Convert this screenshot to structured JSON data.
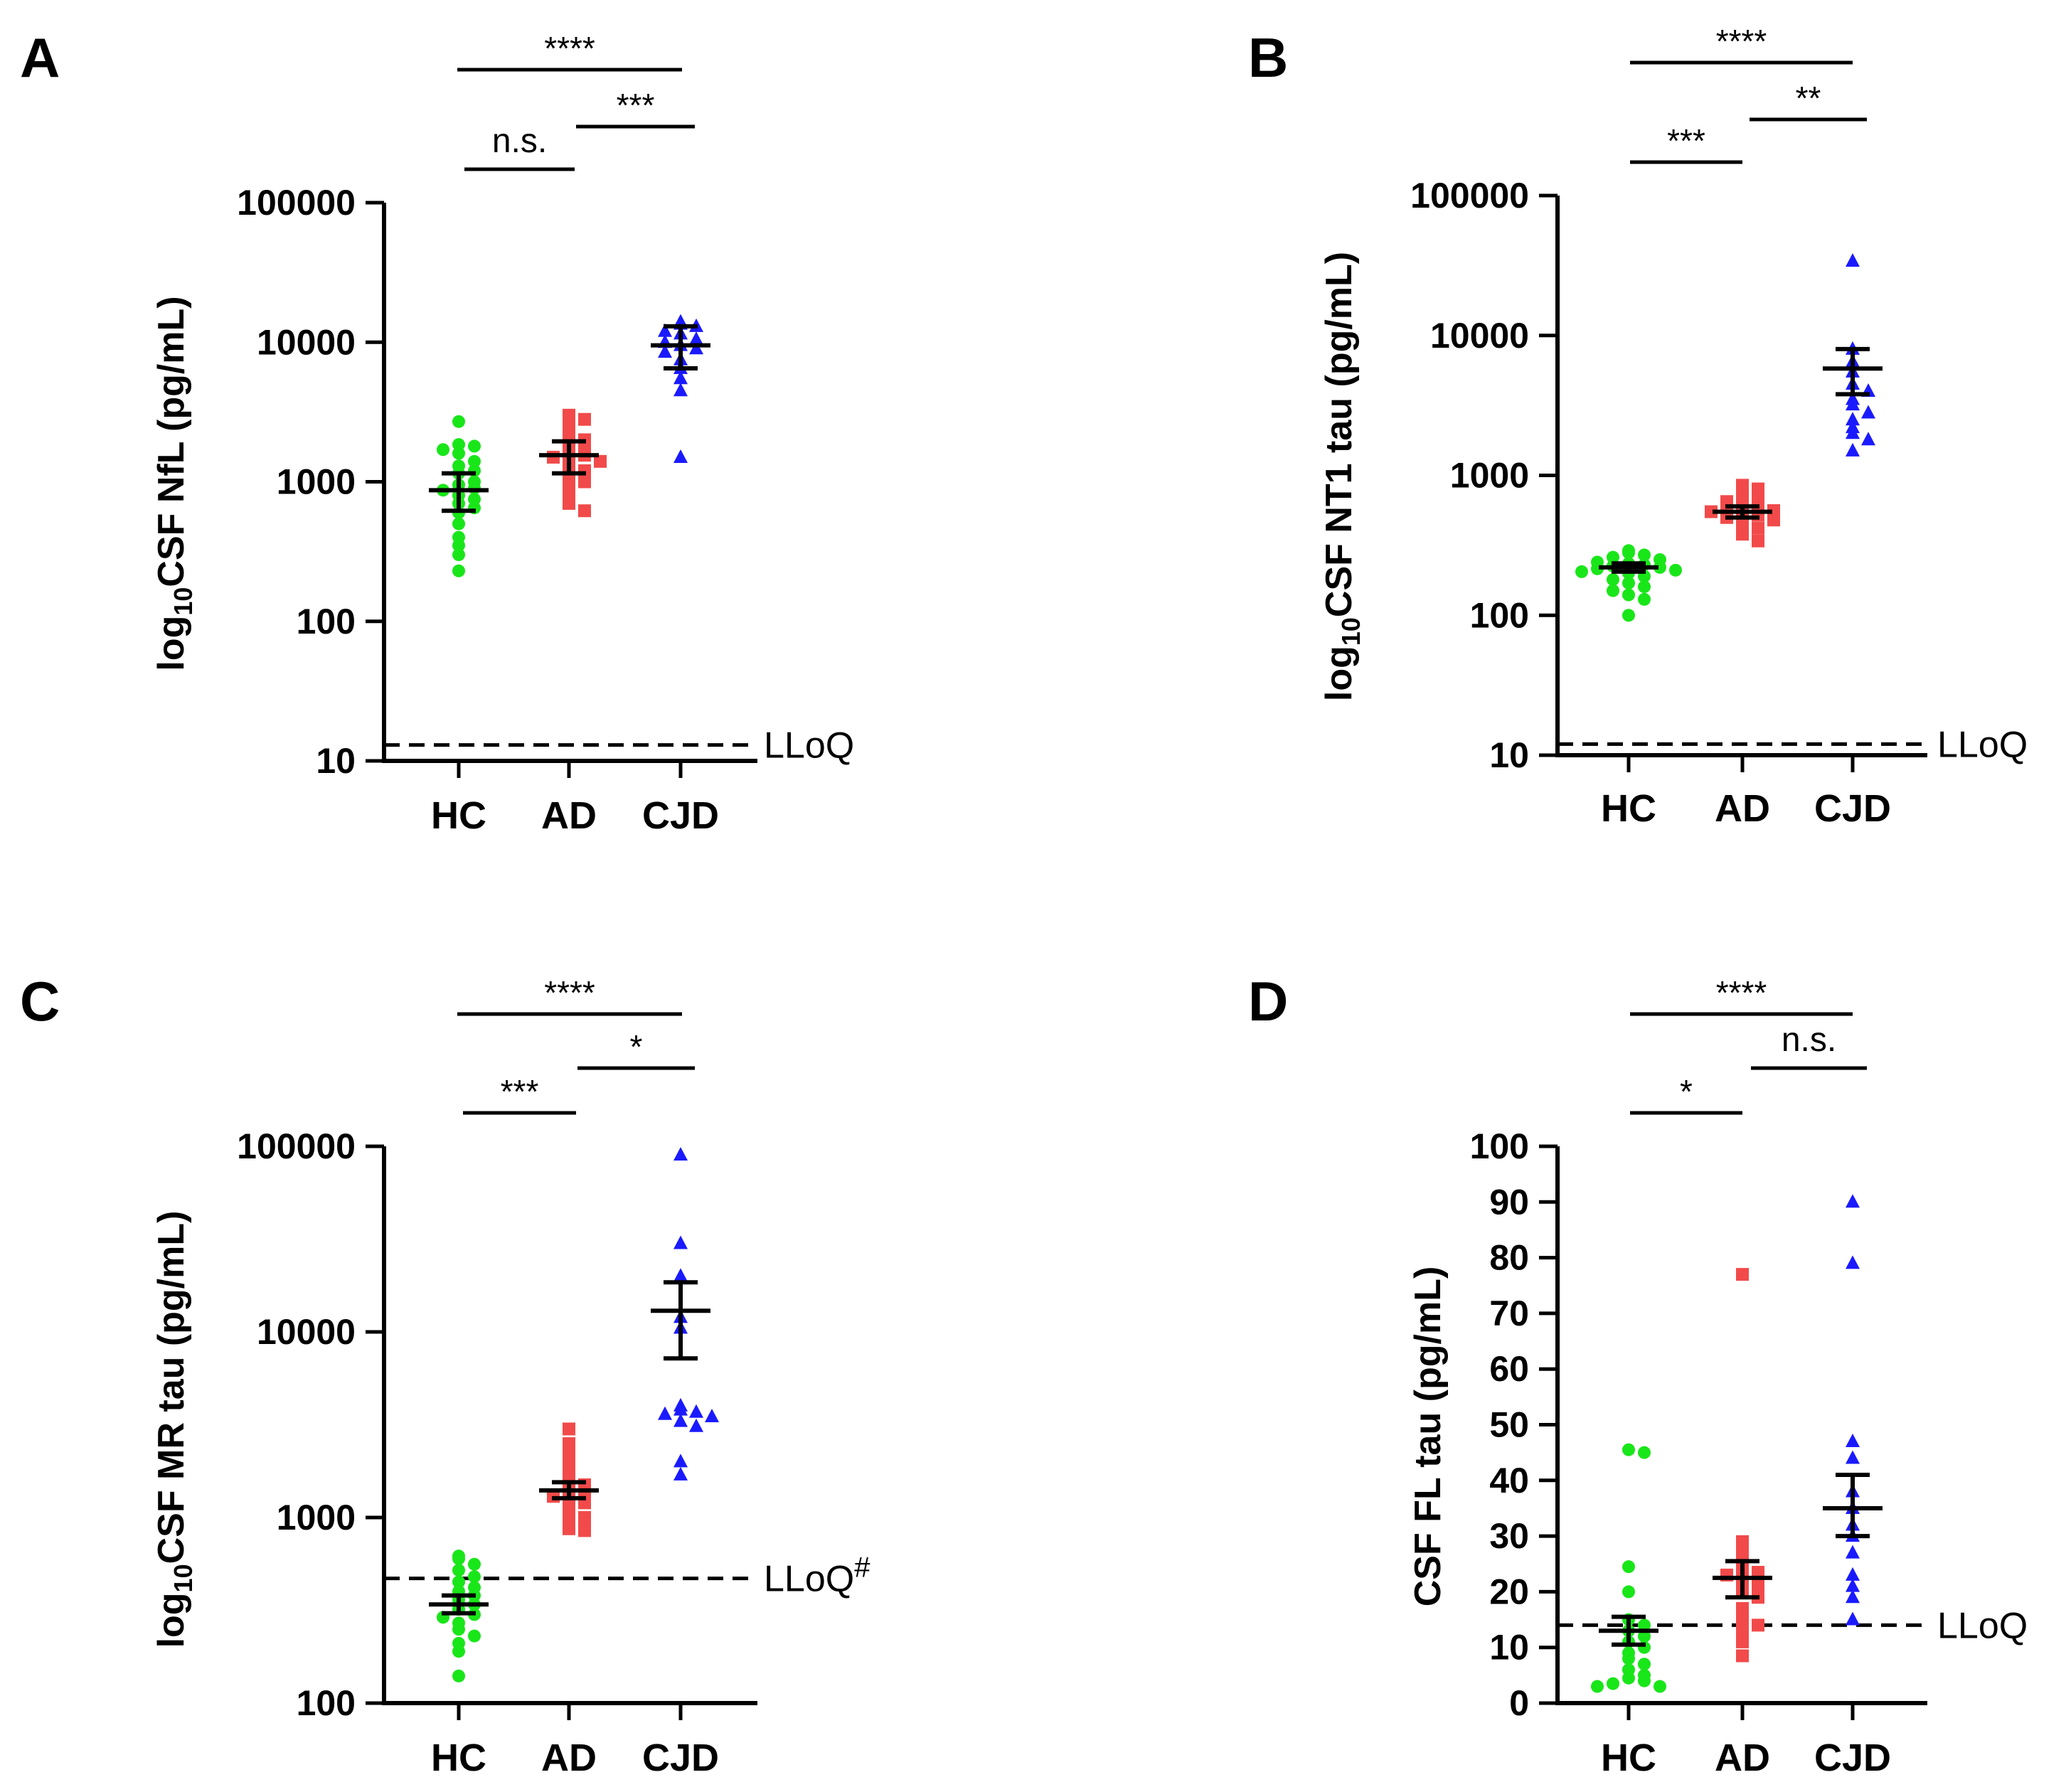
{
  "colors": {
    "HC": "#19e619",
    "AD": "#f24a4a",
    "CJD": "#1a1aff",
    "axis": "#000000"
  },
  "chart_data": [
    {
      "panel": "A",
      "type": "scatter",
      "scale": "log",
      "ylabel_pre": "log",
      "ylabel_sub": "10",
      "ylabel_post": "CSF NfL (pg/mL)",
      "ylim": [
        10,
        100000
      ],
      "yticks": [
        10,
        100,
        1000,
        10000,
        100000
      ],
      "ytick_labels": [
        "10",
        "100",
        "1000",
        "10000",
        "100000"
      ],
      "categories": [
        "HC",
        "AD",
        "CJD"
      ],
      "lloq": {
        "value": 13,
        "label": "LLoQ",
        "sup": ""
      },
      "significance": [
        {
          "from": 0,
          "to": 2,
          "label": "****",
          "level": 0
        },
        {
          "from": 0,
          "to": 1,
          "label": "n.s.",
          "level": 1
        },
        {
          "from": 1,
          "to": 2,
          "label": "***",
          "level": 2
        }
      ],
      "series": [
        {
          "name": "HC",
          "marker": "circle",
          "mean": 870,
          "sem_low": 620,
          "sem_high": 1150,
          "values": [
            2700,
            1850,
            1800,
            1700,
            1600,
            1400,
            1300,
            1200,
            1150,
            1000,
            950,
            900,
            870,
            800,
            750,
            700,
            650,
            600,
            500,
            400,
            350,
            300,
            230
          ]
        },
        {
          "name": "AD",
          "marker": "square",
          "mean": 1550,
          "sem_low": 1150,
          "sem_high": 1950,
          "values": [
            3000,
            2800,
            2500,
            2200,
            2000,
            1800,
            1700,
            1600,
            1550,
            1500,
            1400,
            1300,
            1200,
            1100,
            1000,
            900,
            800,
            700,
            620
          ]
        },
        {
          "name": "CJD",
          "marker": "triangle",
          "mean": 9500,
          "sem_low": 6500,
          "sem_high": 13000,
          "values": [
            14000,
            13500,
            13000,
            12000,
            11500,
            10500,
            10000,
            9500,
            9000,
            8500,
            7500,
            6500,
            5500,
            4500,
            1500
          ]
        }
      ]
    },
    {
      "panel": "B",
      "type": "scatter",
      "scale": "log",
      "ylabel_pre": "log",
      "ylabel_sub": "10",
      "ylabel_post": "CSF NT1 tau (pg/mL)",
      "ylim": [
        10,
        100000
      ],
      "yticks": [
        10,
        100,
        1000,
        10000,
        100000
      ],
      "ytick_labels": [
        "10",
        "100",
        "1000",
        "10000",
        "100000"
      ],
      "categories": [
        "HC",
        "AD",
        "CJD"
      ],
      "lloq": {
        "value": 12,
        "label": "LLoQ",
        "sup": ""
      },
      "significance": [
        {
          "from": 0,
          "to": 2,
          "label": "****",
          "level": 0
        },
        {
          "from": 1,
          "to": 2,
          "label": "**",
          "level": 1
        },
        {
          "from": 0,
          "to": 1,
          "label": "***",
          "level": 2
        }
      ],
      "series": [
        {
          "name": "HC",
          "marker": "circle",
          "mean": 220,
          "sem_low": 205,
          "sem_high": 235,
          "values": [
            290,
            280,
            270,
            260,
            250,
            240,
            235,
            230,
            225,
            220,
            215,
            210,
            205,
            200,
            190,
            180,
            170,
            160,
            150,
            140,
            130,
            100
          ]
        },
        {
          "name": "AD",
          "marker": "square",
          "mean": 550,
          "sem_low": 500,
          "sem_high": 600,
          "values": [
            850,
            800,
            750,
            700,
            650,
            620,
            600,
            580,
            560,
            550,
            540,
            520,
            500,
            480,
            450,
            420,
            380,
            340
          ]
        },
        {
          "name": "CJD",
          "marker": "triangle",
          "mean": 5800,
          "sem_low": 3800,
          "sem_high": 8000,
          "values": [
            34000,
            8000,
            6500,
            5500,
            4500,
            4000,
            3500,
            3200,
            2800,
            2500,
            2200,
            2000,
            1800,
            1500
          ]
        }
      ]
    },
    {
      "panel": "C",
      "type": "scatter",
      "scale": "log",
      "ylabel_pre": "log",
      "ylabel_sub": "10",
      "ylabel_post": "CSF MR tau (pg/mL)",
      "ylim": [
        100,
        100000
      ],
      "yticks": [
        100,
        1000,
        10000,
        100000
      ],
      "ytick_labels": [
        "100",
        "1000",
        "10000",
        "100000"
      ],
      "categories": [
        "HC",
        "AD",
        "CJD"
      ],
      "lloq": {
        "value": 470,
        "label": "LLoQ",
        "sup": "#"
      },
      "significance": [
        {
          "from": 0,
          "to": 2,
          "label": "****",
          "level": 0
        },
        {
          "from": 1,
          "to": 2,
          "label": "*",
          "level": 1
        },
        {
          "from": 0,
          "to": 1,
          "label": "***",
          "level": 2
        }
      ],
      "series": [
        {
          "name": "HC",
          "marker": "circle",
          "mean": 340,
          "sem_low": 305,
          "sem_high": 380,
          "values": [
            620,
            600,
            560,
            520,
            480,
            450,
            420,
            400,
            380,
            360,
            340,
            320,
            300,
            290,
            270,
            250,
            230,
            210,
            190,
            140
          ]
        },
        {
          "name": "AD",
          "marker": "square",
          "mean": 1400,
          "sem_low": 1270,
          "sem_high": 1550,
          "values": [
            3000,
            2500,
            2200,
            1900,
            1700,
            1600,
            1500,
            1400,
            1350,
            1300,
            1250,
            1200,
            1100,
            1000,
            950,
            900,
            870,
            850
          ]
        },
        {
          "name": "CJD",
          "marker": "triangle",
          "mean": 13000,
          "sem_low": 7200,
          "sem_high": 18500,
          "values": [
            90000,
            30000,
            20000,
            12000,
            10500,
            4000,
            3800,
            3700,
            3600,
            3500,
            3300,
            3100,
            2000,
            1700
          ]
        }
      ]
    },
    {
      "panel": "D",
      "type": "scatter",
      "scale": "linear",
      "ylabel_pre": "",
      "ylabel_sub": "",
      "ylabel_post": "CSF FL tau (pg/mL)",
      "ylim": [
        0,
        100
      ],
      "yticks": [
        0,
        10,
        20,
        30,
        40,
        50,
        60,
        70,
        80,
        90,
        100
      ],
      "ytick_labels": [
        "0",
        "10",
        "20",
        "30",
        "40",
        "50",
        "60",
        "70",
        "80",
        "90",
        "100"
      ],
      "categories": [
        "HC",
        "AD",
        "CJD"
      ],
      "lloq": {
        "value": 14,
        "label": "LLoQ",
        "sup": ""
      },
      "significance": [
        {
          "from": 0,
          "to": 2,
          "label": "****",
          "level": 0
        },
        {
          "from": 1,
          "to": 2,
          "label": "n.s.",
          "level": 1
        },
        {
          "from": 0,
          "to": 1,
          "label": "*",
          "level": 2
        }
      ],
      "series": [
        {
          "name": "HC",
          "marker": "circle",
          "mean": 13,
          "sem_low": 10.5,
          "sem_high": 15.5,
          "values": [
            45.5,
            45,
            24.5,
            20,
            15,
            14,
            13,
            12,
            11,
            10,
            9,
            8,
            7,
            6,
            5,
            4.5,
            4,
            3.5,
            3,
            3
          ]
        },
        {
          "name": "AD",
          "marker": "square",
          "mean": 22.5,
          "sem_low": 19,
          "sem_high": 25.5,
          "values": [
            77,
            29,
            27,
            25,
            24,
            23.5,
            23,
            22,
            21,
            20,
            19,
            17,
            15,
            14,
            13,
            11,
            8.5
          ]
        },
        {
          "name": "CJD",
          "marker": "triangle",
          "mean": 35,
          "sem_low": 30,
          "sem_high": 41,
          "values": [
            90,
            79,
            47,
            44,
            38,
            35,
            32,
            30,
            27,
            23,
            21,
            19,
            15
          ]
        }
      ]
    }
  ]
}
